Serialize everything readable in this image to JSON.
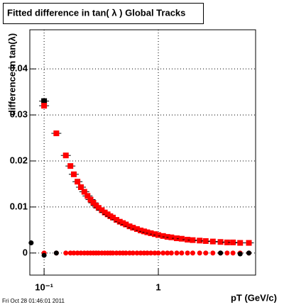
{
  "chart_data": {
    "type": "scatter",
    "title": "Fitted difference in tan( λ )  Global Tracks",
    "ylabel": "difference in tan(λ)",
    "xlabel": "pT (GeV/c)",
    "footer": "Fri Oct 28 01:46:01 2011",
    "xscale": "log",
    "grid": true,
    "xlim": [
      0.075,
      7.1
    ],
    "ylim": [
      -0.0048,
      0.0485
    ],
    "xticks": [
      {
        "value": 0.1,
        "label": "10⁻¹"
      },
      1
    ],
    "yticks": [
      0,
      0.01,
      0.02,
      0.03,
      0.04
    ],
    "series": [
      {
        "color": "#000000",
        "marker": "square",
        "x": [
          0.1
        ],
        "values": [
          0.033
        ]
      },
      {
        "color": "#ff0000",
        "marker": "square",
        "x": [
          0.1,
          0.128,
          0.155,
          0.17,
          0.182,
          0.196,
          0.21,
          0.225,
          0.24,
          0.255,
          0.27,
          0.285,
          0.3,
          0.32,
          0.34,
          0.36,
          0.38,
          0.4,
          0.43,
          0.46,
          0.49,
          0.52,
          0.56,
          0.6,
          0.65,
          0.7,
          0.75,
          0.8,
          0.86,
          0.93,
          1.0,
          1.1,
          1.2,
          1.3,
          1.45,
          1.6,
          1.8,
          2.0,
          2.3,
          2.6,
          3.0,
          3.5,
          4.0,
          4.5,
          5.2,
          6.2
        ],
        "values": [
          0.032,
          0.026,
          0.0212,
          0.0189,
          0.0171,
          0.0155,
          0.0143,
          0.0133,
          0.0124,
          0.0116,
          0.0109,
          0.0103,
          0.0098,
          0.0093,
          0.0088,
          0.0084,
          0.008,
          0.0077,
          0.0072,
          0.0068,
          0.0065,
          0.0062,
          0.0058,
          0.0055,
          0.0052,
          0.0049,
          0.0047,
          0.0045,
          0.0043,
          0.0041,
          0.0039,
          0.0037,
          0.0035,
          0.0034,
          0.0032,
          0.0031,
          0.0029,
          0.0028,
          0.0027,
          0.0026,
          0.0025,
          0.0024,
          0.0023,
          0.0023,
          0.0022,
          0.0022
        ]
      },
      {
        "color": "#ff0000",
        "marker": "circle",
        "x": [
          0.1,
          0.128,
          0.155,
          0.17,
          0.182,
          0.196,
          0.21,
          0.225,
          0.24,
          0.255,
          0.27,
          0.285,
          0.3,
          0.32,
          0.34,
          0.36,
          0.38,
          0.4,
          0.43,
          0.46,
          0.49,
          0.52,
          0.56,
          0.6,
          0.65,
          0.7,
          0.75,
          0.8,
          0.86,
          0.93,
          1.0,
          1.1,
          1.2,
          1.3,
          1.45,
          1.6,
          1.8,
          2.0,
          2.3,
          2.6,
          3.0,
          3.5,
          4.0,
          4.5,
          5.2,
          6.2
        ],
        "values": [
          0,
          0,
          0,
          0,
          0,
          0,
          0,
          0,
          0,
          0,
          0,
          0,
          0,
          0,
          0,
          0,
          0,
          0,
          0,
          0,
          0,
          0,
          0,
          0,
          0,
          0,
          0,
          0,
          0,
          0,
          0,
          0,
          0,
          0,
          0,
          0,
          0,
          0,
          0,
          0,
          0,
          0,
          0,
          0,
          0,
          0
        ]
      },
      {
        "color": "#000000",
        "marker": "circle",
        "x": [
          0.077,
          0.1,
          0.128,
          3.5,
          5.2,
          6.2
        ],
        "values": [
          0.0022,
          -0.0005,
          0,
          0,
          -0.0002,
          0
        ]
      }
    ]
  }
}
